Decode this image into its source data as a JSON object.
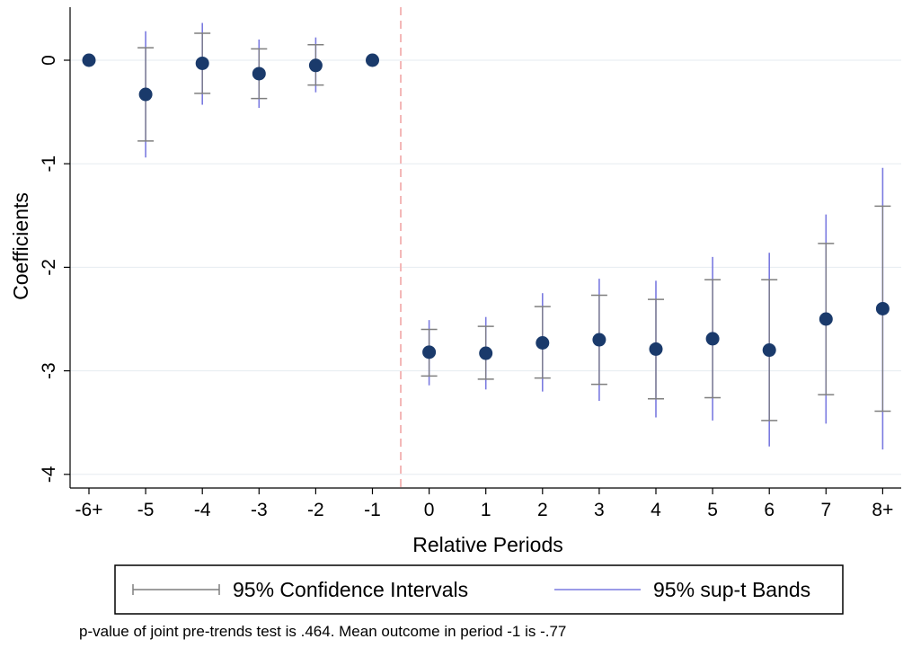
{
  "chart_data": {
    "type": "scatter",
    "xlabel": "Relative Periods",
    "ylabel": "Coefficients",
    "categories": [
      "-6+",
      "-5",
      "-4",
      "-3",
      "-2",
      "-1",
      "0",
      "1",
      "2",
      "3",
      "4",
      "5",
      "6",
      "7",
      "8+"
    ],
    "ylim": [
      -4.15,
      0.5
    ],
    "yticks": [
      0,
      -1,
      -2,
      -3,
      -4
    ],
    "ytick_labels": [
      "0",
      "-1",
      "-2",
      "-3",
      "-4"
    ],
    "grid": true,
    "event_line_between": [
      "-1",
      "0"
    ],
    "points": [
      {
        "x": "-6+",
        "y": 0.0,
        "ci": null,
        "supt": null
      },
      {
        "x": "-5",
        "y": -0.33,
        "ci": [
          -0.78,
          0.12
        ],
        "supt": [
          -0.94,
          0.28
        ]
      },
      {
        "x": "-4",
        "y": -0.03,
        "ci": [
          -0.32,
          0.26
        ],
        "supt": [
          -0.43,
          0.36
        ]
      },
      {
        "x": "-3",
        "y": -0.13,
        "ci": [
          -0.37,
          0.11
        ],
        "supt": [
          -0.46,
          0.2
        ]
      },
      {
        "x": "-2",
        "y": -0.05,
        "ci": [
          -0.24,
          0.15
        ],
        "supt": [
          -0.31,
          0.22
        ]
      },
      {
        "x": "-1",
        "y": 0.0,
        "ci": null,
        "supt": null
      },
      {
        "x": "0",
        "y": -2.82,
        "ci": [
          -3.05,
          -2.6
        ],
        "supt": [
          -3.14,
          -2.51
        ]
      },
      {
        "x": "1",
        "y": -2.83,
        "ci": [
          -3.08,
          -2.57
        ],
        "supt": [
          -3.18,
          -2.48
        ]
      },
      {
        "x": "2",
        "y": -2.73,
        "ci": [
          -3.07,
          -2.38
        ],
        "supt": [
          -3.2,
          -2.25
        ]
      },
      {
        "x": "3",
        "y": -2.7,
        "ci": [
          -3.13,
          -2.27
        ],
        "supt": [
          -3.29,
          -2.11
        ]
      },
      {
        "x": "4",
        "y": -2.79,
        "ci": [
          -3.27,
          -2.31
        ],
        "supt": [
          -3.45,
          -2.13
        ]
      },
      {
        "x": "5",
        "y": -2.69,
        "ci": [
          -3.26,
          -2.12
        ],
        "supt": [
          -3.48,
          -1.9
        ]
      },
      {
        "x": "6",
        "y": -2.8,
        "ci": [
          -3.48,
          -2.12
        ],
        "supt": [
          -3.73,
          -1.86
        ]
      },
      {
        "x": "7",
        "y": -2.5,
        "ci": [
          -3.23,
          -1.77
        ],
        "supt": [
          -3.51,
          -1.49
        ]
      },
      {
        "x": "8+",
        "y": -2.4,
        "ci": [
          -3.39,
          -1.41
        ],
        "supt": [
          -3.76,
          -1.04
        ]
      }
    ],
    "legend": {
      "position": "bottom",
      "entries": [
        "95% Confidence Intervals",
        "95% sup-t Bands"
      ]
    },
    "note": "p-value of joint pre-trends test is .464. Mean outcome in period -1 is -.77",
    "colors": {
      "marker": "#1a3a6b",
      "confidence_interval": "#7f7f7f",
      "supt_band": "#7a7ae0",
      "event_line": "#f4b6b6",
      "grid": "#e6ebf0"
    }
  }
}
